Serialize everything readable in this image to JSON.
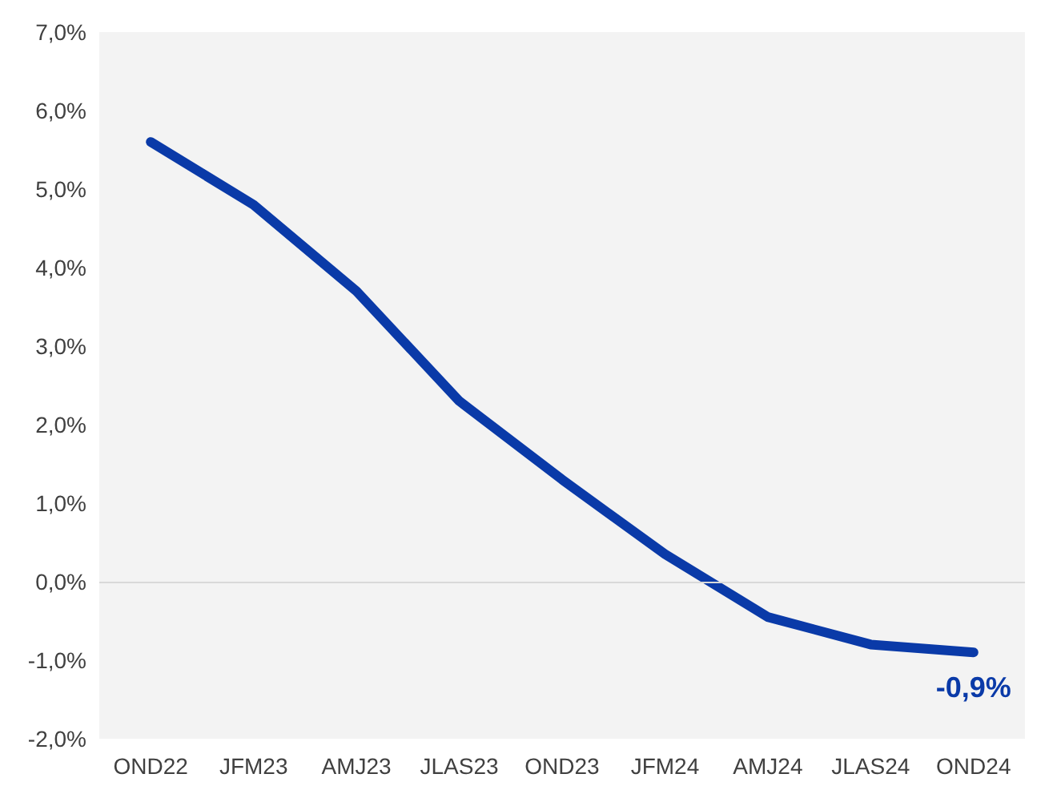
{
  "chart_data": {
    "type": "line",
    "categories": [
      "OND22",
      "JFM23",
      "AMJ23",
      "JLAS23",
      "OND23",
      "JFM24",
      "AMJ24",
      "JLAS24",
      "OND24"
    ],
    "series": [
      {
        "color": "#0a3aa8",
        "values": [
          5.6,
          4.8,
          3.7,
          2.3,
          1.3,
          0.35,
          -0.45,
          -0.8,
          -0.9
        ]
      }
    ],
    "ylim": [
      -2,
      7
    ],
    "yticks": [
      {
        "value": -2,
        "label": "-2,0%"
      },
      {
        "value": -1,
        "label": "-1,0%"
      },
      {
        "value": 0,
        "label": "0,0%"
      },
      {
        "value": 1,
        "label": "1,0%"
      },
      {
        "value": 2,
        "label": "2,0%"
      },
      {
        "value": 3,
        "label": "3,0%"
      },
      {
        "value": 4,
        "label": "4,0%"
      },
      {
        "value": 5,
        "label": "5,0%"
      },
      {
        "value": 6,
        "label": "6,0%"
      },
      {
        "value": 7,
        "label": "7,0%"
      }
    ],
    "annotations": [
      {
        "text": "-0,9%",
        "x": "OND24",
        "y": -0.9
      }
    ],
    "ref_lines": [
      {
        "axis": "y",
        "value": 0,
        "color": "#d9d9d9"
      }
    ],
    "grid": false,
    "marker": "none",
    "line_style": "solid"
  }
}
